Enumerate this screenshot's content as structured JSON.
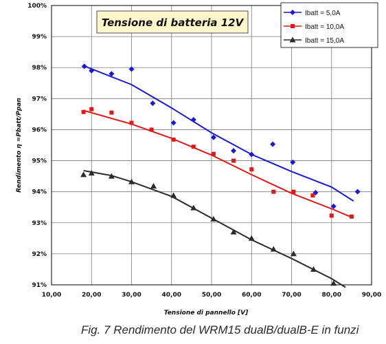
{
  "chart_data": {
    "type": "scatter",
    "title": "Tensione di batteria 12V",
    "xlabel": "Tensione di pannello [V]",
    "ylabel": "Rendimento η =Pbatt/Ppan",
    "xlim": [
      10,
      90
    ],
    "ylim": [
      91,
      100
    ],
    "x_ticks": [
      "10,00",
      "20,00",
      "30,00",
      "40,00",
      "50,00",
      "60,00",
      "70,00",
      "80,00",
      "90,00"
    ],
    "y_ticks": [
      "91%",
      "92%",
      "93%",
      "94%",
      "95%",
      "96%",
      "97%",
      "98%",
      "99%",
      "100%"
    ],
    "grid": true,
    "legend_position": "top-right",
    "series": [
      {
        "name": "Ibatt = 5,0A",
        "color": "#1a1ad6",
        "marker": "diamond",
        "points": [
          [
            18.2,
            98.04
          ],
          [
            20.0,
            97.9
          ],
          [
            25.0,
            97.8
          ],
          [
            30.0,
            97.95
          ],
          [
            35.3,
            96.85
          ],
          [
            40.5,
            96.22
          ],
          [
            45.5,
            96.32
          ],
          [
            50.5,
            95.75
          ],
          [
            55.5,
            95.32
          ],
          [
            60.0,
            95.2
          ],
          [
            65.3,
            95.53
          ],
          [
            70.3,
            94.95
          ],
          [
            76.0,
            93.97
          ],
          [
            80.5,
            93.53
          ],
          [
            86.5,
            94.0
          ]
        ],
        "trend": [
          [
            18.2,
            98.05
          ],
          [
            30.0,
            97.45
          ],
          [
            40.0,
            96.7
          ],
          [
            50.0,
            95.9
          ],
          [
            60.0,
            95.2
          ],
          [
            70.0,
            94.65
          ],
          [
            80.0,
            94.15
          ],
          [
            85.5,
            93.7
          ]
        ]
      },
      {
        "name": "Ibatt = 10,0A",
        "color": "#e01818",
        "marker": "square",
        "points": [
          [
            18.0,
            96.57
          ],
          [
            20.0,
            96.66
          ],
          [
            25.0,
            96.55
          ],
          [
            30.0,
            96.22
          ],
          [
            35.0,
            96.0
          ],
          [
            40.5,
            95.68
          ],
          [
            45.5,
            95.45
          ],
          [
            50.5,
            95.22
          ],
          [
            55.5,
            95.0
          ],
          [
            60.0,
            94.72
          ],
          [
            65.5,
            94.0
          ],
          [
            70.5,
            94.0
          ],
          [
            75.3,
            93.88
          ],
          [
            80.0,
            93.23
          ],
          [
            85.0,
            93.2
          ]
        ],
        "trend": [
          [
            18.0,
            96.62
          ],
          [
            30.0,
            96.18
          ],
          [
            40.0,
            95.72
          ],
          [
            50.0,
            95.18
          ],
          [
            60.0,
            94.55
          ],
          [
            70.0,
            93.95
          ],
          [
            80.0,
            93.45
          ],
          [
            85.0,
            93.18
          ]
        ]
      },
      {
        "name": "Ibatt = 15,0A",
        "color": "#2b2b2b",
        "marker": "triangle",
        "points": [
          [
            18.0,
            94.55
          ],
          [
            20.0,
            94.6
          ],
          [
            25.0,
            94.5
          ],
          [
            30.0,
            94.32
          ],
          [
            35.5,
            94.18
          ],
          [
            40.5,
            93.88
          ],
          [
            45.5,
            93.48
          ],
          [
            50.5,
            93.12
          ],
          [
            55.5,
            92.7
          ],
          [
            60.0,
            92.5
          ],
          [
            65.5,
            92.15
          ],
          [
            70.5,
            92.0
          ],
          [
            75.5,
            91.5
          ],
          [
            80.5,
            91.05
          ]
        ],
        "trend": [
          [
            18.0,
            94.68
          ],
          [
            25.0,
            94.52
          ],
          [
            30.0,
            94.32
          ],
          [
            40.0,
            93.85
          ],
          [
            50.0,
            93.15
          ],
          [
            60.0,
            92.45
          ],
          [
            70.0,
            91.85
          ],
          [
            80.0,
            91.2
          ],
          [
            83.5,
            90.92
          ]
        ]
      }
    ]
  },
  "caption": "Fig. 7 Rendimento del WRM15 dualB/dualB-E in funzi"
}
